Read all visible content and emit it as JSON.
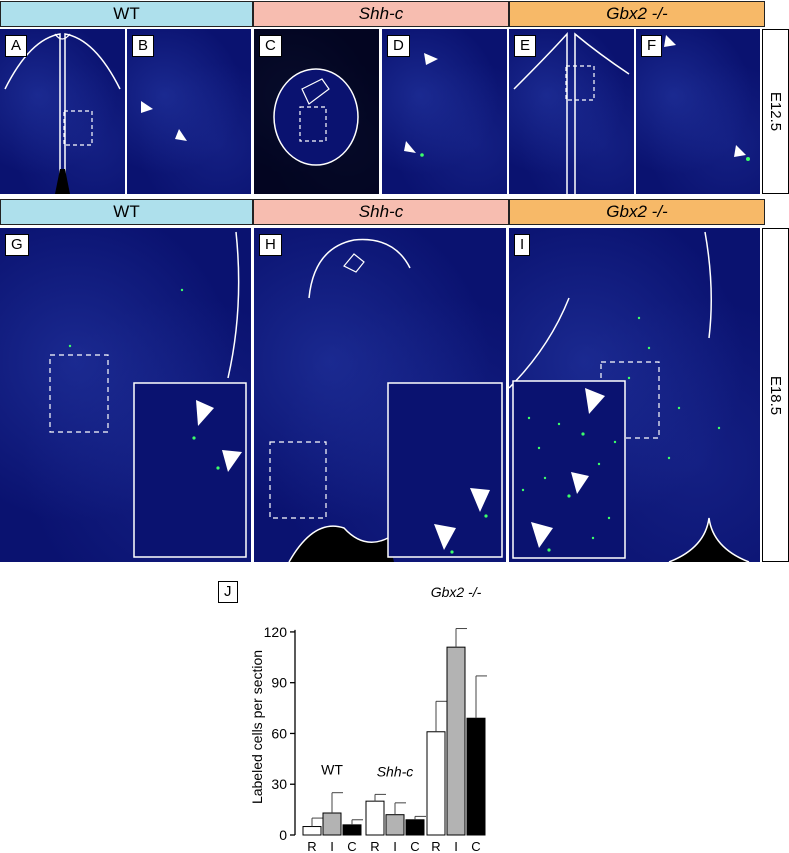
{
  "headers_top": [
    "WT",
    "Shh-c",
    "Gbx2 -/-"
  ],
  "headers_bottom": [
    "WT",
    "Shh-c",
    "Gbx2 -/-"
  ],
  "panels": [
    "A",
    "B",
    "C",
    "D",
    "E",
    "F",
    "G",
    "H",
    "I"
  ],
  "stages": {
    "top": "E12.5",
    "bottom": "E18.5"
  },
  "panel_j": "J",
  "colors": {
    "wt_header": "#aee0ec",
    "shh_header": "#f7bdb0",
    "gbx2_header": "#f7b968",
    "dapi": "#0a1270",
    "label_green": "#3cff6a"
  },
  "chart_data": {
    "type": "bar",
    "ylabel": "Labeled cells per section",
    "yticks": [
      0,
      30,
      60,
      90,
      120
    ],
    "ylim": [
      0,
      130
    ],
    "groups": [
      {
        "name": "WT",
        "bars": [
          {
            "label": "R",
            "value": 5,
            "err": 5,
            "color": "#ffffff"
          },
          {
            "label": "I",
            "value": 13,
            "err": 12,
            "color": "#b3b3b3"
          },
          {
            "label": "C",
            "value": 6,
            "err": 3,
            "color": "#000000"
          }
        ]
      },
      {
        "name": "Shh-c",
        "bars": [
          {
            "label": "R",
            "value": 20,
            "err": 4,
            "color": "#ffffff"
          },
          {
            "label": "I",
            "value": 12,
            "err": 7,
            "color": "#b3b3b3"
          },
          {
            "label": "C",
            "value": 9,
            "err": 2,
            "color": "#000000"
          }
        ]
      },
      {
        "name": "Gbx2 -/-",
        "bars": [
          {
            "label": "R",
            "value": 61,
            "err": 18,
            "color": "#ffffff"
          },
          {
            "label": "I",
            "value": 111,
            "err": 11,
            "color": "#b3b3b3"
          },
          {
            "label": "C",
            "value": 69,
            "err": 25,
            "color": "#000000"
          }
        ]
      }
    ]
  }
}
